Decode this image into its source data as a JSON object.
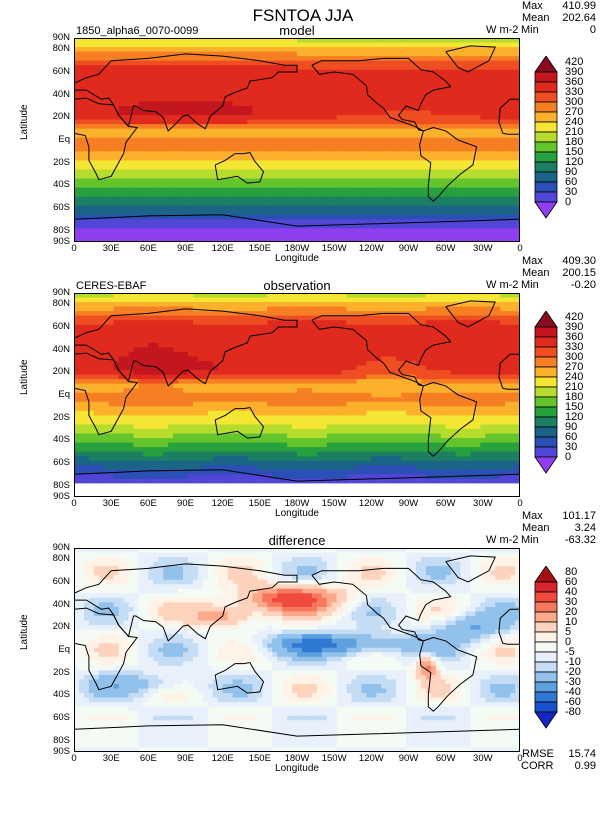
{
  "title": "FSNTOA JJA",
  "x_tick_labels": [
    "0",
    "30E",
    "60E",
    "90E",
    "120E",
    "150E",
    "180W",
    "150W",
    "120W",
    "90W",
    "60W",
    "30W",
    "0"
  ],
  "y_tick_labels": [
    "90N",
    "80N",
    "60N",
    "40N",
    "20N",
    "Eq",
    "20S",
    "40S",
    "60S",
    "80S",
    "90S"
  ],
  "x_axis_label": "Longitude",
  "y_axis_label": "Latitude",
  "panels": [
    {
      "label": "model",
      "case": "1850_alpha6_0070-0099",
      "units": "W m-2",
      "stats": {
        "max_label": "Max",
        "max": "410.99",
        "mean_label": "Mean",
        "mean": "202.64",
        "min_label": "Min",
        "min": "0"
      },
      "colorbar": {
        "labels": [
          "420",
          "390",
          "360",
          "330",
          "300",
          "270",
          "240",
          "210",
          "180",
          "150",
          "120",
          "90",
          "60",
          "30",
          "0"
        ],
        "colors": [
          "#8b0c20",
          "#c4161f",
          "#e02a1e",
          "#ef4e23",
          "#f57f22",
          "#fbb12c",
          "#f5e633",
          "#b6dc2e",
          "#64c42c",
          "#27a13d",
          "#1c7f61",
          "#1b6488",
          "#2b4fb5",
          "#5147d6",
          "#8f3ff0"
        ]
      }
    },
    {
      "label": "observation",
      "case": "CERES-EBAF",
      "units": "W m-2",
      "stats": {
        "max_label": "Max",
        "max": "409.30",
        "mean_label": "Mean",
        "mean": "200.15",
        "min_label": "Min",
        "min": "-0.20"
      },
      "colorbar": {
        "labels": [
          "420",
          "390",
          "360",
          "330",
          "300",
          "270",
          "240",
          "210",
          "180",
          "150",
          "120",
          "90",
          "60",
          "30",
          "0"
        ],
        "colors": [
          "#8b0c20",
          "#c4161f",
          "#e02a1e",
          "#ef4e23",
          "#f57f22",
          "#fbb12c",
          "#f5e633",
          "#b6dc2e",
          "#64c42c",
          "#27a13d",
          "#1c7f61",
          "#1b6488",
          "#2b4fb5",
          "#5147d6",
          "#8f3ff0"
        ]
      }
    },
    {
      "label": "difference",
      "case": "",
      "units": "W m-2",
      "stats": {
        "max_label": "Max",
        "max": "101.17",
        "mean_label": "Mean",
        "mean": "3.24",
        "min_label": "Min",
        "min": "-63.32"
      },
      "rmse_label": "RMSE",
      "rmse": "15.74",
      "corr_label": "CORR",
      "corr": "0.99",
      "colorbar": {
        "labels": [
          "80",
          "60",
          "40",
          "30",
          "20",
          "10",
          "5",
          "0",
          "-5",
          "-10",
          "-20",
          "-30",
          "-40",
          "-60",
          "-80"
        ],
        "colors": [
          "#a50f15",
          "#d7262c",
          "#ef4a3c",
          "#f8785d",
          "#fba98a",
          "#fdd3bd",
          "#fff3e8",
          "#f4fbf4",
          "#e8f1fb",
          "#c4dcf4",
          "#92c1eb",
          "#5ca0e0",
          "#2f78d3",
          "#1a4fcf",
          "#1526c4"
        ]
      }
    }
  ]
}
